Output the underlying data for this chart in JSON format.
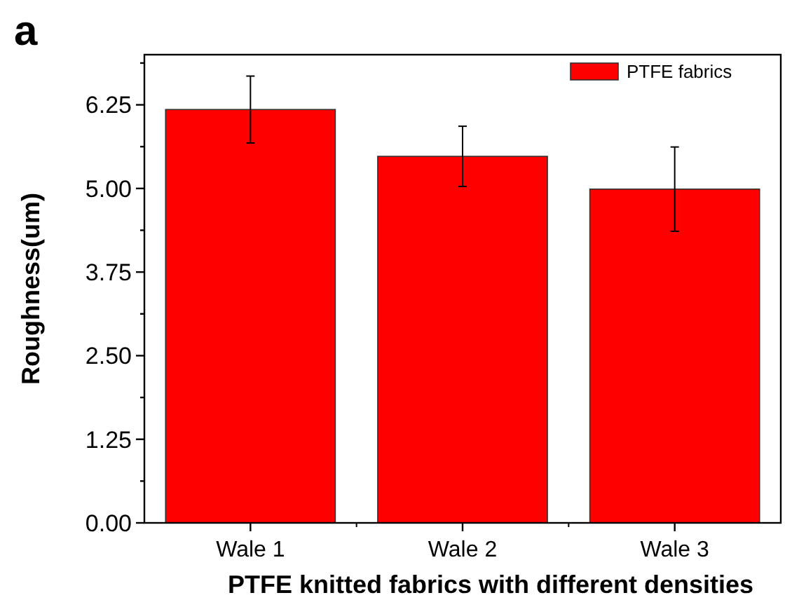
{
  "chart_data": {
    "type": "bar",
    "annotations": [
      "a"
    ],
    "xlabel": "PTFE knitted fabrics with different densities",
    "ylabel": "Roughness(um)",
    "categories": [
      "Wale 1",
      "Wale 2",
      "Wale 3"
    ],
    "series": [
      {
        "name": "PTFE fabrics",
        "color": "#ff0000",
        "values": [
          6.18,
          5.48,
          4.99
        ],
        "errors": [
          0.5,
          0.45,
          0.63
        ]
      }
    ],
    "ylim": [
      0,
      7
    ],
    "yticks": [
      {
        "value": 0,
        "label": "0.00"
      },
      {
        "value": 0.625,
        "label": null
      },
      1.25,
      {
        "value": 1.875,
        "label": null
      },
      {
        "value": 2.5,
        "label": "2.50"
      },
      {
        "value": 3.125,
        "label": null
      },
      3.75,
      {
        "value": 4.375,
        "label": null
      },
      {
        "value": 5,
        "label": "5.00"
      },
      {
        "value": 5.625,
        "label": null
      },
      6.25,
      {
        "value": 6.875,
        "label": null
      }
    ],
    "legend": "top right",
    "grid": false
  }
}
